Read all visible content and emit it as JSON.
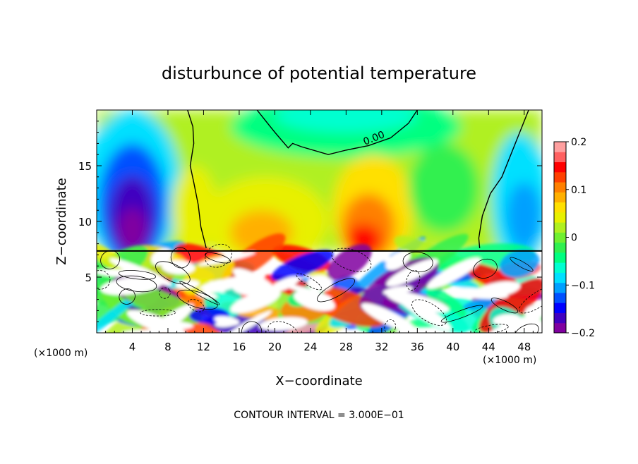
{
  "chart_data": {
    "type": "heatmap",
    "title": "disturbunce of potential temperature",
    "xlabel": "X−coordinate",
    "ylabel": "Z−coordinate",
    "x_unit": "(×1000 m)",
    "y_unit": "(×1000 m)",
    "xlim": [
      0,
      50
    ],
    "ylim": [
      0,
      20
    ],
    "x_ticks": [
      4,
      8,
      12,
      16,
      20,
      24,
      28,
      32,
      36,
      40,
      44,
      48
    ],
    "y_ticks": [
      5,
      10,
      15
    ],
    "colorbar": {
      "range": [
        -0.2,
        0.2
      ],
      "ticks": [
        {
          "value": 0.2,
          "label": "0.2"
        },
        {
          "value": 0.1,
          "label": "0.1"
        },
        {
          "value": 0.0,
          "label": "0"
        },
        {
          "value": -0.1,
          "label": "−0.1"
        },
        {
          "value": -0.2,
          "label": "−0.2"
        }
      ],
      "colors": [
        "#8000a0",
        "#4000c0",
        "#0000ff",
        "#0050ff",
        "#00a0ff",
        "#00e0ff",
        "#00ffd0",
        "#00ff80",
        "#30f050",
        "#70f030",
        "#b0f020",
        "#e8f000",
        "#ffe000",
        "#ffb000",
        "#ff8000",
        "#ff4000",
        "#ff0000",
        "#ff6060",
        "#ffa0a0"
      ]
    },
    "contour_label": "0.00",
    "footnote": "CONTOUR INTERVAL = 3.000E−01"
  }
}
